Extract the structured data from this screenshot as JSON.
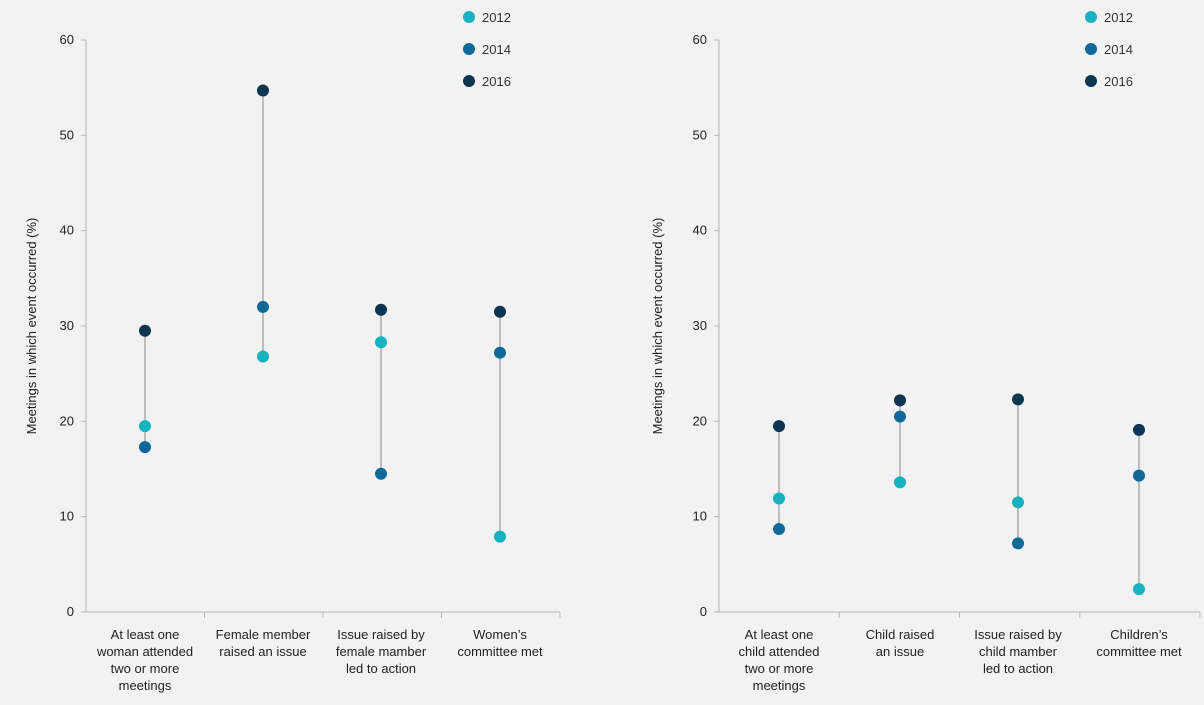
{
  "chart_data": [
    {
      "type": "scatter",
      "ylabel": "Meetings in which event occurred (%)",
      "ylim": [
        0,
        60
      ],
      "yticks": [
        "0",
        "10",
        "20",
        "30",
        "40",
        "50",
        "60"
      ],
      "categories": [
        "At least one woman attended two or more meetings",
        "Female member raised an issue",
        "Issue raised by female mamber led to action",
        "Women’s committee met"
      ],
      "category_lines": [
        [
          "At least one",
          "woman attended",
          "two or more",
          "meetings"
        ],
        [
          "Female member",
          "raised an issue"
        ],
        [
          "Issue raised by",
          "female mamber",
          "led to action"
        ],
        [
          "Women’s",
          "committee met"
        ]
      ],
      "series": [
        {
          "name": "2012",
          "color": "#17b1c0",
          "values": [
            19.5,
            26.8,
            28.3,
            7.9
          ]
        },
        {
          "name": "2014",
          "color": "#0f6898",
          "values": [
            17.3,
            32.0,
            14.5,
            27.2
          ]
        },
        {
          "name": "2016",
          "color": "#0c3550",
          "values": [
            29.5,
            54.7,
            31.7,
            31.5
          ]
        }
      ],
      "legend": "top-right",
      "grid": false
    },
    {
      "type": "scatter",
      "ylabel": "Meetings in which event occurred (%)",
      "ylim": [
        0,
        60
      ],
      "yticks": [
        "0",
        "10",
        "20",
        "30",
        "40",
        "50",
        "60"
      ],
      "categories": [
        "At least one child attended two or more meetings",
        "Child raised an issue",
        "Issue raised by child mamber led to action",
        "Children’s committee met"
      ],
      "category_lines": [
        [
          "At least one",
          "child attended",
          "two or more",
          "meetings"
        ],
        [
          "Child raised",
          "an issue"
        ],
        [
          "Issue raised by",
          "child mamber",
          "led to action"
        ],
        [
          "Children’s",
          "committee met"
        ]
      ],
      "series": [
        {
          "name": "2012",
          "color": "#17b1c0",
          "values": [
            11.9,
            13.6,
            11.5,
            2.4
          ]
        },
        {
          "name": "2014",
          "color": "#0f6898",
          "values": [
            8.7,
            20.5,
            7.2,
            14.3
          ]
        },
        {
          "name": "2016",
          "color": "#0c3550",
          "values": [
            19.5,
            22.2,
            22.3,
            19.1
          ]
        }
      ],
      "legend": "top-right",
      "grid": false
    }
  ]
}
